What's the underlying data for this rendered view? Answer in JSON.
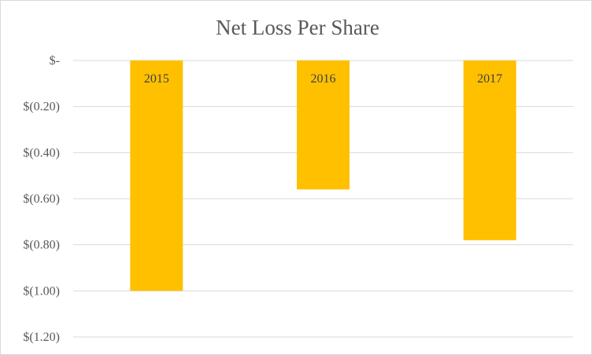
{
  "chart_data": {
    "type": "bar",
    "title": "Net Loss Per Share",
    "categories": [
      "2015",
      "2016",
      "2017"
    ],
    "values": [
      -1.0,
      -0.56,
      -0.78
    ],
    "ylim": [
      -1.2,
      0
    ],
    "yticks": [
      0,
      -0.2,
      -0.4,
      -0.6,
      -0.8,
      -1.0,
      -1.2
    ],
    "ytick_labels": [
      "$-",
      "$(0.20)",
      "$(0.40)",
      "$(0.60)",
      "$(0.80)",
      "$(1.00)",
      "$(1.20)"
    ],
    "grid": true,
    "legend": "none",
    "data_labels": "category names inside bar tops",
    "colors": {
      "bar": "#FFC000",
      "grid": "#D9D9D9",
      "text": "#595959"
    }
  }
}
